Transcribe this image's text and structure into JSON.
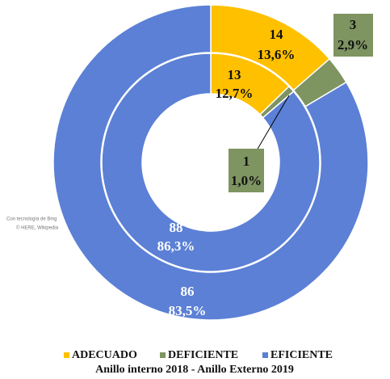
{
  "chart_data": {
    "type": "donut",
    "title": "Anillo interno 2018 - Anillo Externo 2019",
    "categories": [
      "ADECUADO",
      "DEFICIENTE",
      "EFICIENTE"
    ],
    "colors": [
      "#FFC000",
      "#7E9461",
      "#5B80D5"
    ],
    "series": [
      {
        "values": [
          13,
          1,
          88
        ],
        "percentages": [
          {
            "value": 12.7,
            "label": "12,7%"
          },
          {
            "value": 1.0,
            "label": "1,0%"
          },
          {
            "value": 86.3,
            "label": "86,3%"
          }
        ]
      },
      {
        "values": [
          14,
          3,
          86
        ],
        "percentages": [
          {
            "value": 13.6,
            "label": "13,6%"
          },
          {
            "value": 2.9,
            "label": "2,9%"
          },
          {
            "value": 83.5,
            "label": "83,5%"
          }
        ]
      }
    ],
    "legend": "bottom",
    "attribution": [
      "Con tecnología de Bing",
      "© HERE, Wikipedia"
    ]
  }
}
